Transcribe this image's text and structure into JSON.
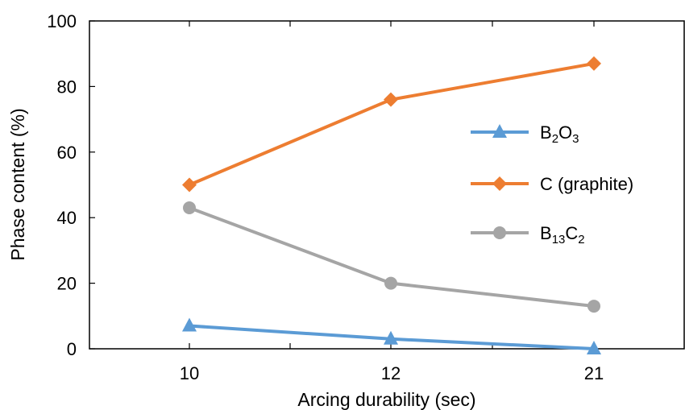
{
  "chart_data": {
    "type": "line",
    "categories": [
      "10",
      "12",
      "21"
    ],
    "xlabel": "Arcing durability (sec)",
    "ylabel": "Phase content (%)",
    "ylim": [
      0,
      100
    ],
    "yticks": [
      "0",
      "20",
      "40",
      "60",
      "80",
      "100"
    ],
    "grid": false,
    "legend_position": "right",
    "series": [
      {
        "name": "B2O3",
        "legend_parts": [
          [
            "B",
            "n"
          ],
          [
            "2",
            "sub"
          ],
          [
            "O",
            "n"
          ],
          [
            "3",
            "sub"
          ]
        ],
        "values": [
          7,
          3,
          0
        ],
        "color": "#5b9bd5",
        "marker": "triangle"
      },
      {
        "name": "C (graphite)",
        "legend_parts": [
          [
            "C (graphite)",
            "n"
          ]
        ],
        "values": [
          50,
          76,
          87
        ],
        "color": "#ed7d31",
        "marker": "diamond"
      },
      {
        "name": "B13C2",
        "legend_parts": [
          [
            "B",
            "n"
          ],
          [
            "13",
            "sub"
          ],
          [
            "C",
            "n"
          ],
          [
            "2",
            "sub"
          ]
        ],
        "values": [
          43,
          20,
          13
        ],
        "color": "#a5a5a5",
        "marker": "circle"
      }
    ]
  }
}
